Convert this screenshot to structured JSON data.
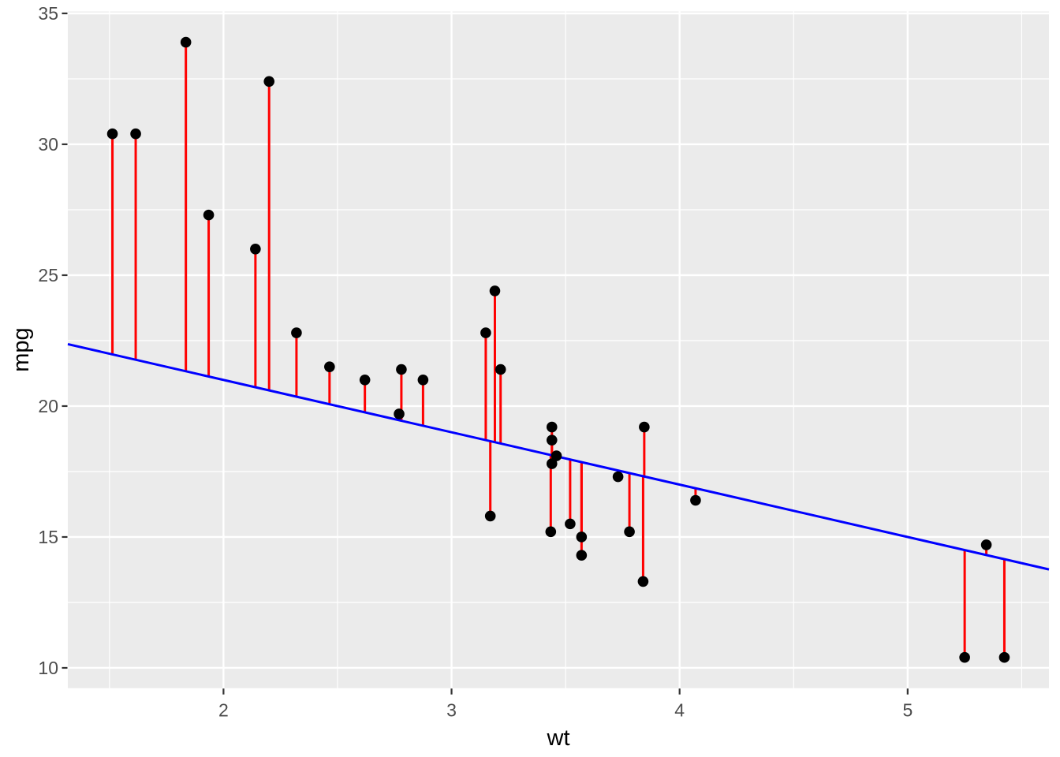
{
  "chart_data": {
    "type": "scatter",
    "title": "",
    "xlabel": "wt",
    "ylabel": "mpg",
    "xlim": [
      1.3174,
      5.6196
    ],
    "ylim": [
      9.225,
      35.075
    ],
    "x_ticks": [
      2,
      3,
      4,
      5
    ],
    "y_ticks": [
      10,
      15,
      20,
      25,
      30,
      35
    ],
    "x_minor_ticks": [
      1.5,
      2.5,
      3.5,
      4.5,
      5.5
    ],
    "y_minor_ticks": [
      12.5,
      17.5,
      22.5,
      27.5,
      32.5
    ],
    "grid": true,
    "legend": "none",
    "points": [
      [
        2.62,
        21.0
      ],
      [
        2.875,
        21.0
      ],
      [
        2.32,
        22.8
      ],
      [
        3.215,
        21.4
      ],
      [
        3.44,
        18.7
      ],
      [
        3.46,
        18.1
      ],
      [
        3.57,
        14.3
      ],
      [
        3.19,
        24.4
      ],
      [
        3.15,
        22.8
      ],
      [
        3.44,
        19.2
      ],
      [
        3.44,
        17.8
      ],
      [
        4.07,
        16.4
      ],
      [
        3.73,
        17.3
      ],
      [
        3.78,
        15.2
      ],
      [
        5.25,
        10.4
      ],
      [
        5.424,
        10.4
      ],
      [
        5.345,
        14.7
      ],
      [
        2.2,
        32.4
      ],
      [
        1.615,
        30.4
      ],
      [
        1.835,
        33.9
      ],
      [
        2.465,
        21.5
      ],
      [
        3.52,
        15.5
      ],
      [
        3.435,
        15.2
      ],
      [
        3.84,
        13.3
      ],
      [
        3.845,
        19.2
      ],
      [
        1.935,
        27.3
      ],
      [
        2.14,
        26.0
      ],
      [
        1.513,
        30.4
      ],
      [
        3.17,
        15.8
      ],
      [
        2.77,
        19.7
      ],
      [
        3.57,
        15.0
      ],
      [
        2.78,
        21.4
      ]
    ],
    "fit_line": {
      "intercept": 25,
      "slope": -2
    },
    "residual_segments": "from each point vertically to fit line",
    "colors": {
      "point": "#000000",
      "residual": "#FF0000",
      "line": "#0000FF",
      "panel_bg": "#EBEBEB",
      "grid_major": "#FFFFFF",
      "grid_minor": "#FFFFFF",
      "axis_text": "#4D4D4D",
      "axis_title": "#000000",
      "tick_mark": "#333333"
    }
  }
}
